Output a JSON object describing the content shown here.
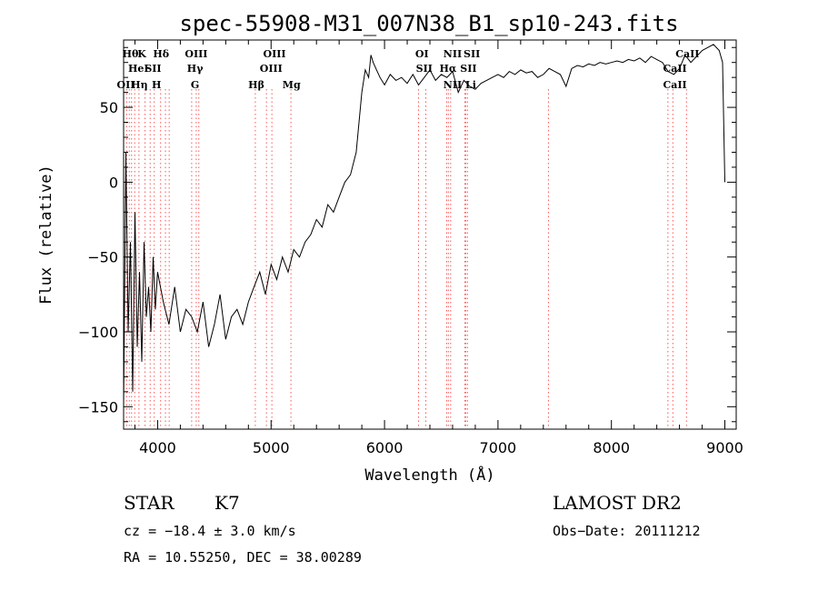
{
  "chart_data": {
    "type": "line",
    "title": "spec-55908-M31_007N38_B1_sp10-243.fits",
    "xlabel": "Wavelength (Å)",
    "ylabel": "Flux (relative)",
    "xlim": [
      3700,
      9100
    ],
    "ylim": [
      -165,
      95
    ],
    "xticks": [
      4000,
      5000,
      6000,
      7000,
      8000,
      9000
    ],
    "yticks": [
      -150,
      -100,
      -50,
      0,
      50
    ],
    "series": [
      {
        "x": [
          3700,
          3720,
          3740,
          3760,
          3780,
          3800,
          3820,
          3840,
          3860,
          3880,
          3900,
          3920,
          3940,
          3960,
          3980,
          4000,
          4050,
          4100,
          4150,
          4200,
          4250,
          4300,
          4350,
          4400,
          4450,
          4500,
          4550,
          4600,
          4650,
          4700,
          4750,
          4800,
          4850,
          4900,
          4950,
          5000,
          5050,
          5100,
          5150,
          5200,
          5250,
          5300,
          5350,
          5400,
          5450,
          5500,
          5550,
          5600,
          5650,
          5700,
          5750,
          5800,
          5830,
          5860,
          5880,
          5900,
          5930,
          5960,
          6000,
          6050,
          6100,
          6150,
          6200,
          6250,
          6300,
          6350,
          6400,
          6450,
          6500,
          6550,
          6600,
          6650,
          6700,
          6750,
          6800,
          6850,
          6900,
          6950,
          7000,
          7050,
          7100,
          7150,
          7200,
          7250,
          7300,
          7350,
          7400,
          7450,
          7500,
          7550,
          7600,
          7650,
          7700,
          7750,
          7800,
          7850,
          7900,
          7950,
          8000,
          8050,
          8100,
          8150,
          8200,
          8250,
          8300,
          8350,
          8400,
          8450,
          8500,
          8550,
          8600,
          8650,
          8700,
          8750,
          8800,
          8850,
          8900,
          8950,
          8980,
          9000
        ],
        "y": [
          -150,
          20,
          -100,
          -40,
          -140,
          -20,
          -110,
          -60,
          -120,
          -40,
          -90,
          -70,
          -100,
          -50,
          -85,
          -60,
          -80,
          -95,
          -70,
          -100,
          -85,
          -90,
          -100,
          -80,
          -110,
          -95,
          -75,
          -105,
          -90,
          -85,
          -95,
          -80,
          -70,
          -60,
          -75,
          -55,
          -65,
          -50,
          -60,
          -45,
          -50,
          -40,
          -35,
          -25,
          -30,
          -15,
          -20,
          -10,
          0,
          5,
          20,
          60,
          75,
          70,
          85,
          80,
          75,
          70,
          65,
          72,
          68,
          70,
          66,
          72,
          65,
          70,
          75,
          68,
          72,
          70,
          74,
          60,
          68,
          64,
          62,
          66,
          68,
          70,
          72,
          70,
          74,
          72,
          75,
          73,
          74,
          70,
          72,
          76,
          74,
          72,
          64,
          76,
          78,
          77,
          79,
          78,
          80,
          79,
          80,
          81,
          80,
          82,
          81,
          83,
          80,
          84,
          82,
          80,
          74,
          72,
          76,
          85,
          80,
          84,
          88,
          90,
          92,
          88,
          80,
          0
        ]
      }
    ],
    "line_marks": {
      "x": [
        3727,
        3750,
        3770,
        3798,
        3835,
        3889,
        3934,
        3970,
        4026,
        4069,
        4102,
        4300,
        4340,
        4363,
        4861,
        4959,
        5007,
        5175,
        6300,
        6364,
        6548,
        6563,
        6583,
        6708,
        6716,
        6731,
        7445,
        8498,
        8542,
        8662
      ],
      "labels_row1": [
        "Hθ",
        "K",
        "Hδ",
        "OIII",
        "OIII",
        "OI",
        "NII",
        "SII",
        "CaII"
      ],
      "labels_row2": [
        "HeI",
        "SII",
        "Hγ",
        "OIII",
        "SII",
        "Hα",
        "SII",
        "CaII"
      ],
      "labels_row3": [
        "OII",
        "Hη",
        "H",
        "G",
        "Hβ",
        "Mg",
        "NII",
        "Li",
        "CaII"
      ]
    }
  },
  "footer": {
    "object_class": "STAR",
    "subclass": "K7",
    "survey": "LAMOST DR2",
    "redshift": "cz = −18.4 ± 3.0 km/s",
    "obs_date": "Obs−Date: 20111212",
    "coords": "RA =  10.55250, DEC =  38.00289"
  }
}
